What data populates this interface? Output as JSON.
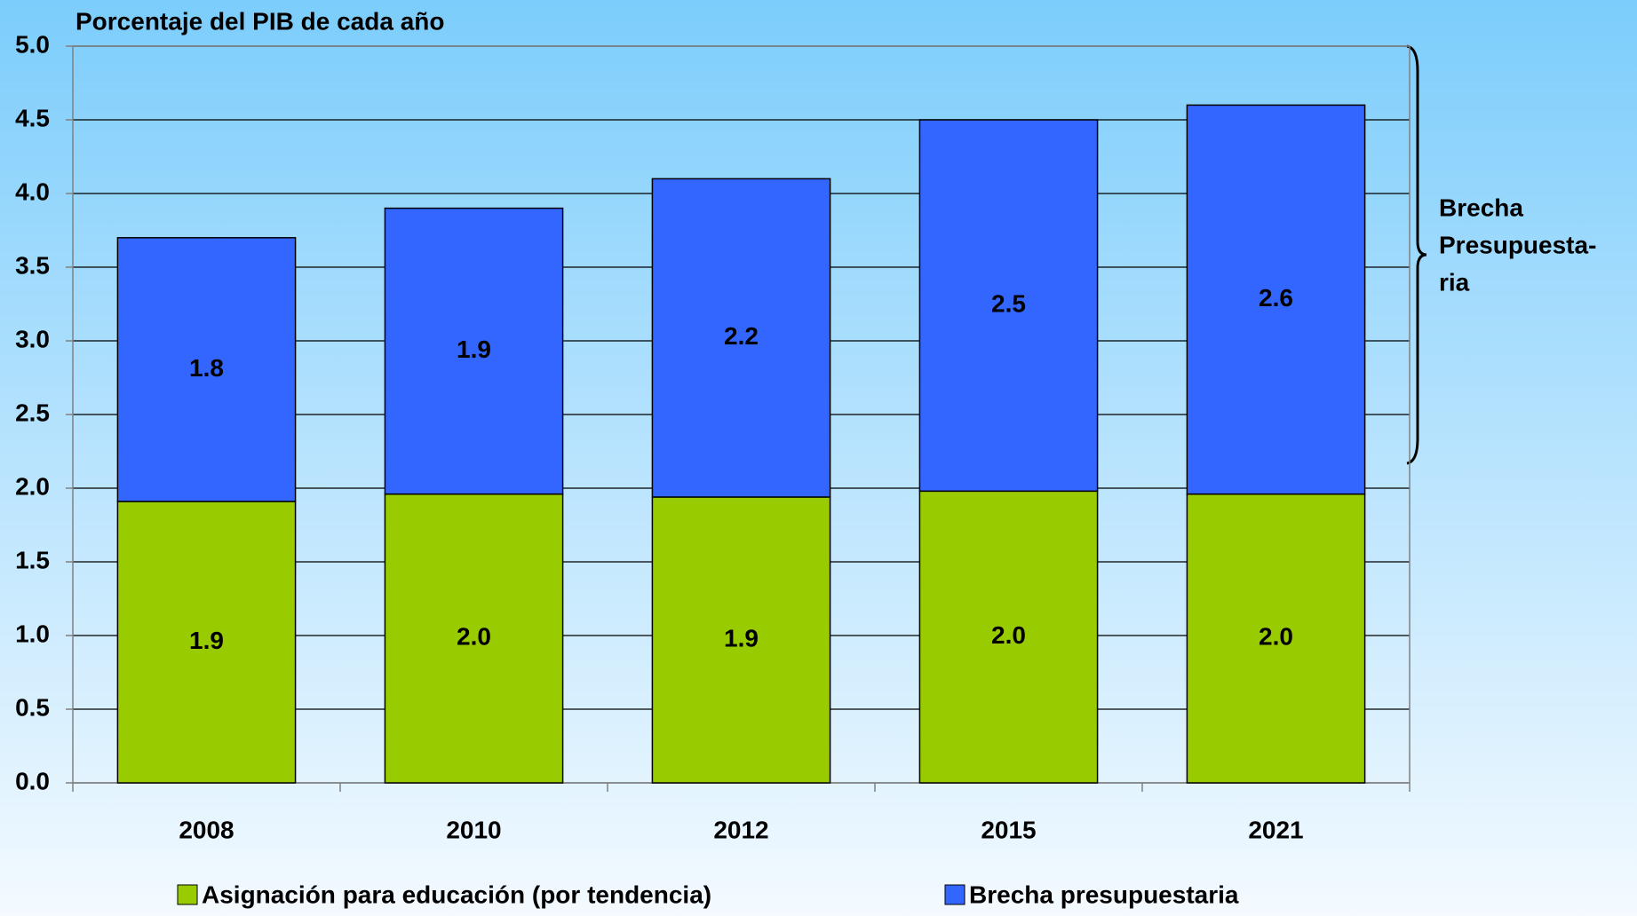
{
  "chart_data": {
    "type": "stacked_bar",
    "title": "Porcentaje del PIB de cada año",
    "categories": [
      "2008",
      "2010",
      "2012",
      "2015",
      "2021"
    ],
    "series": [
      {
        "name": "Asignación para educación (por tendencia)",
        "color": "#99cc00",
        "values": [
          1.91,
          1.96,
          1.94,
          1.98,
          1.96
        ],
        "value_labels": [
          "1.9",
          "2.0",
          "1.9",
          "2.0",
          "2.0"
        ]
      },
      {
        "name": "Brecha presupuestaria",
        "color": "#3366ff",
        "values": [
          1.79,
          1.94,
          2.16,
          2.52,
          2.64
        ],
        "value_labels": [
          "1.8",
          "1.9",
          "2.2",
          "2.5",
          "2.6"
        ]
      }
    ],
    "ylim": [
      0,
      5
    ],
    "yticks": [
      {
        "value": 0,
        "label": "0.0"
      },
      {
        "value": 0.5,
        "label": "0.5"
      },
      {
        "value": 1,
        "label": "1.0"
      },
      {
        "value": 1.5,
        "label": "1.5"
      },
      {
        "value": 2,
        "label": "2.0"
      },
      {
        "value": 2.5,
        "label": "2.5"
      },
      {
        "value": 3,
        "label": "3.0"
      },
      {
        "value": 3.5,
        "label": "3.5"
      },
      {
        "value": 4,
        "label": "4.0"
      },
      {
        "value": 4.5,
        "label": "4.5"
      },
      {
        "value": 5,
        "label": "5.0"
      }
    ],
    "grid": true,
    "annotation": [
      "Brecha",
      "Presupuesta-",
      "ria"
    ]
  }
}
